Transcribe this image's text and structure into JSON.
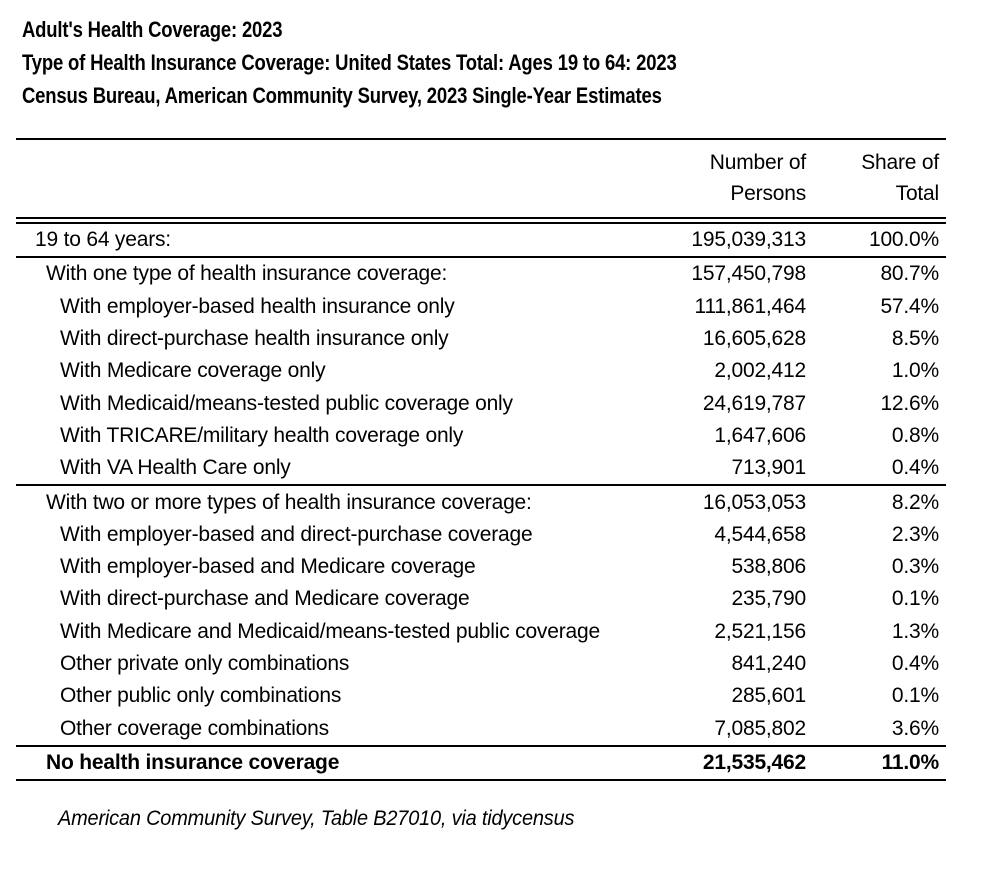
{
  "page": {
    "titles": [
      "Adult's Health Coverage: 2023",
      "Type of Health Insurance Coverage: United States Total: Ages 19 to 64: 2023",
      "Census Bureau, American Community Survey, 2023 Single-Year Estimates"
    ],
    "source_note": "American Community Survey, Table B27010, via tidycensus",
    "colors": {
      "text": "#000000",
      "background": "#ffffff",
      "rule": "#000000"
    }
  },
  "table": {
    "columns": {
      "number": {
        "line1": "Number of",
        "line2": "Persons"
      },
      "share": {
        "line1": "Share of",
        "line2": "Total"
      }
    },
    "rows": [
      {
        "label": "19 to 64 years:",
        "number": "195,039,313",
        "share": "100.0%"
      },
      {
        "label": "With one type of health insurance coverage:",
        "number": "157,450,798",
        "share": "80.7%"
      },
      {
        "label": "With employer-based health insurance only",
        "number": "111,861,464",
        "share": "57.4%"
      },
      {
        "label": "With direct-purchase health insurance only",
        "number": "16,605,628",
        "share": "8.5%"
      },
      {
        "label": "With Medicare coverage only",
        "number": "2,002,412",
        "share": "1.0%"
      },
      {
        "label": "With Medicaid/means-tested public coverage only",
        "number": "24,619,787",
        "share": "12.6%"
      },
      {
        "label": "With TRICARE/military health coverage only",
        "number": "1,647,606",
        "share": "0.8%"
      },
      {
        "label": "With VA Health Care only",
        "number": "713,901",
        "share": "0.4%"
      },
      {
        "label": "With two or more types of health insurance coverage:",
        "number": "16,053,053",
        "share": "8.2%"
      },
      {
        "label": "With employer-based and direct-purchase coverage",
        "number": "4,544,658",
        "share": "2.3%"
      },
      {
        "label": "With employer-based and Medicare coverage",
        "number": "538,806",
        "share": "0.3%"
      },
      {
        "label": "With direct-purchase and Medicare coverage",
        "number": "235,790",
        "share": "0.1%"
      },
      {
        "label": "With Medicare and Medicaid/means-tested public coverage",
        "number": "2,521,156",
        "share": "1.3%"
      },
      {
        "label": "Other private only combinations",
        "number": "841,240",
        "share": "0.4%"
      },
      {
        "label": "Other public only combinations",
        "number": "285,601",
        "share": "0.1%"
      },
      {
        "label": "Other coverage combinations",
        "number": "7,085,802",
        "share": "3.6%"
      },
      {
        "label": "No health insurance coverage",
        "number": "21,535,462",
        "share": "11.0%"
      }
    ]
  }
}
